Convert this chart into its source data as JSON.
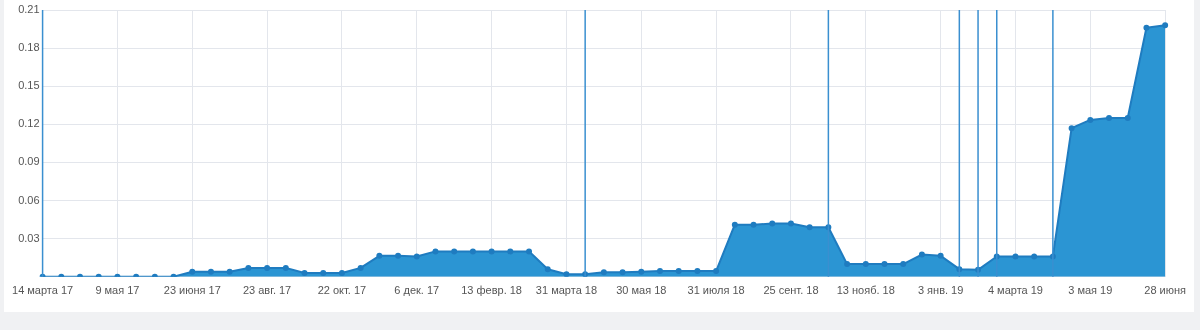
{
  "chart_data": {
    "type": "area",
    "categories": [
      "14 марта 17",
      null,
      null,
      null,
      "9 мая 17",
      null,
      null,
      null,
      "23 июня 17",
      null,
      null,
      null,
      "23 авг. 17",
      null,
      null,
      null,
      "22 окт. 17",
      null,
      null,
      null,
      "6 дек. 17",
      null,
      null,
      null,
      "13 февр. 18",
      null,
      null,
      null,
      "31 марта 18",
      null,
      null,
      null,
      "30 мая 18",
      null,
      null,
      null,
      "31 июля 18",
      null,
      null,
      null,
      "25 сент. 18",
      null,
      null,
      null,
      "13 нояб. 18",
      null,
      null,
      null,
      "3 янв. 19",
      null,
      null,
      null,
      "4 марта 19",
      null,
      null,
      null,
      "3 мая 19",
      null,
      null,
      null,
      "28 июня"
    ],
    "series": [
      {
        "color": "#2b95d3",
        "values": [
          0,
          0,
          0,
          0,
          0,
          0,
          0,
          0,
          0.004,
          0.004,
          0.004,
          0.007,
          0.007,
          0.007,
          0.003,
          0.003,
          0.003,
          0.007,
          0.0165,
          0.0165,
          0.016,
          0.02,
          0.02,
          0.02,
          0.02,
          0.02,
          0.02,
          0.006,
          0.002,
          0.002,
          0.0035,
          0.0035,
          0.004,
          0.0045,
          0.0045,
          0.0045,
          0.0045,
          0.041,
          0.041,
          0.042,
          0.042,
          0.039,
          0.039,
          0.01,
          0.01,
          0.01,
          0.01,
          0.0175,
          0.0165,
          0.006,
          0.0055,
          0.016,
          0.016,
          0.016,
          0.016,
          0.117,
          0.1235,
          0.125,
          0.125,
          0.196,
          0.198
        ]
      }
    ],
    "ylim": [
      0,
      0.21
    ],
    "yticks": [
      {
        "value": 0,
        "label": null
      },
      0.03,
      0.06,
      0.09,
      0.12,
      0.15,
      0.18,
      0.21
    ],
    "grid": true,
    "marker": "circle"
  }
}
